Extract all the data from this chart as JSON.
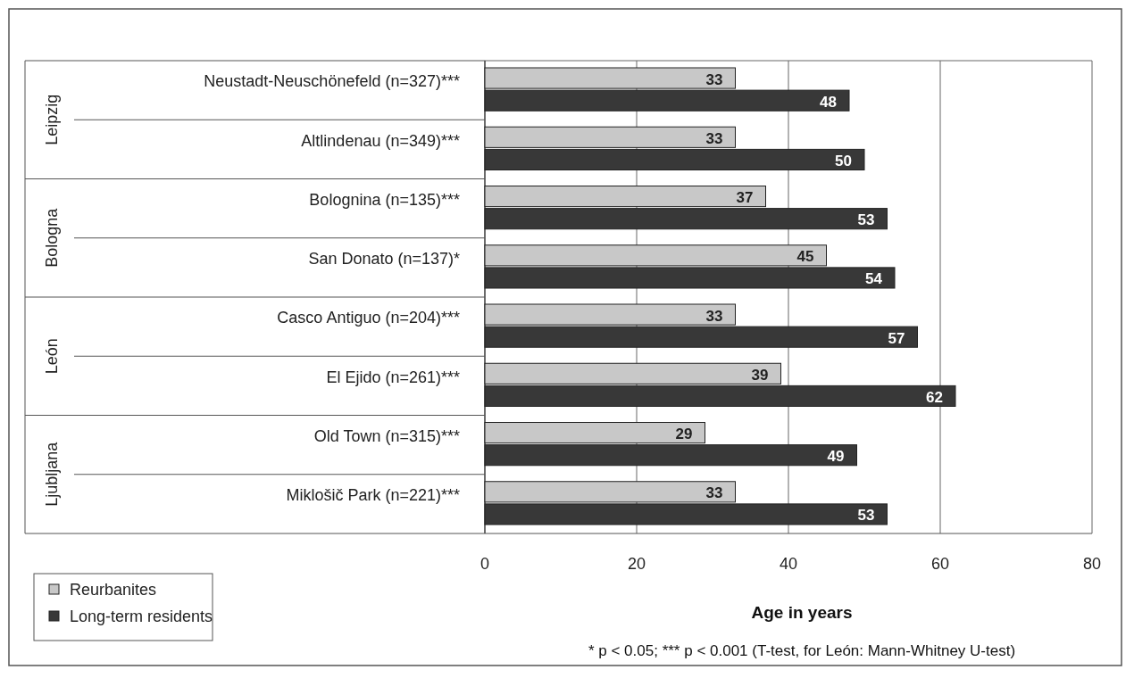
{
  "chart_data": {
    "type": "bar",
    "orientation": "horizontal",
    "xlabel": "Age in years",
    "categories": [
      "Neustadt-Neuschönefeld (n=327)***",
      "Altlindenau (n=349)***",
      "Bolognina (n=135)***",
      "San Donato (n=137)*",
      "Casco Antiguo (n=204)***",
      "El Ejido (n=261)***",
      "Old Town (n=315)***",
      "Miklošič Park (n=221)***"
    ],
    "series": [
      {
        "name": "Reurbanites",
        "color": "#c8c8c8",
        "values": [
          33,
          33,
          37,
          45,
          33,
          39,
          29,
          33
        ]
      },
      {
        "name": "Long-term residents",
        "color": "#383838",
        "values": [
          48,
          50,
          53,
          54,
          57,
          62,
          49,
          53
        ]
      }
    ],
    "xlim": [
      0,
      80
    ],
    "xticks": [
      0,
      20,
      40,
      60,
      80
    ],
    "grid": "x",
    "legend": "bottom left",
    "data_labels": true,
    "annotations": [
      "Leipzig",
      "Bologna",
      "León",
      "Ljubljana",
      "* p < 0.05; *** p < 0.001 (T-test, for León: Mann-Whitney U-test)"
    ]
  }
}
